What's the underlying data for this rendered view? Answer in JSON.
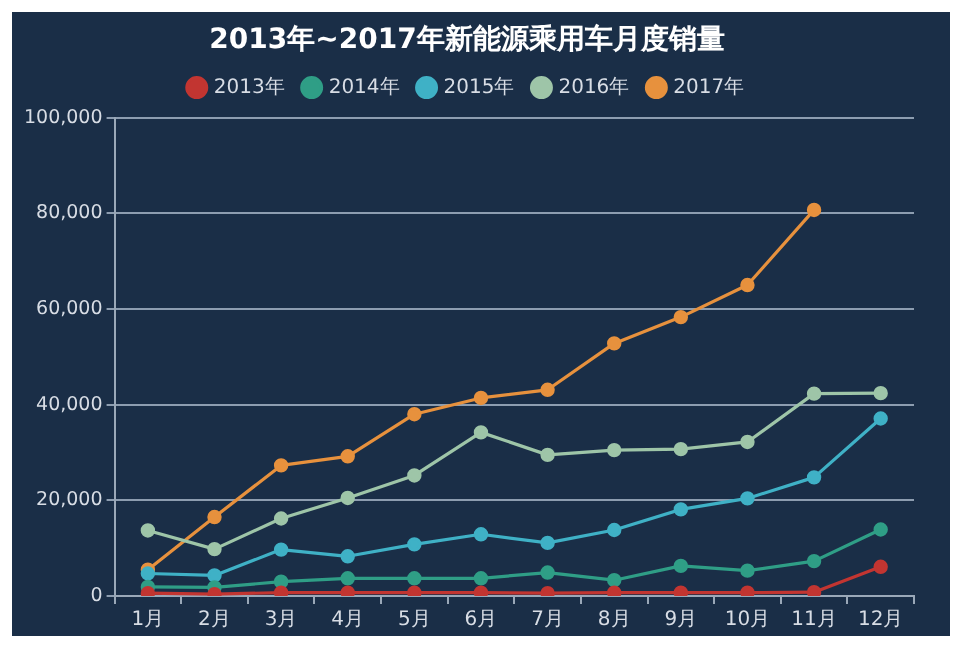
{
  "chart_data": {
    "type": "line",
    "title": "2013年~2017年新能源乘用车月度销量",
    "categories": [
      "1月",
      "2月",
      "3月",
      "4月",
      "5月",
      "6月",
      "7月",
      "8月",
      "9月",
      "10月",
      "11月",
      "12月"
    ],
    "series": [
      {
        "name": "2013年",
        "color": "#c23531",
        "values": [
          600,
          400,
          700,
          700,
          700,
          700,
          600,
          700,
          700,
          700,
          800,
          6100
        ]
      },
      {
        "name": "2014年",
        "color": "#2f9e86",
        "values": [
          1900,
          1800,
          3000,
          3700,
          3700,
          3700,
          4900,
          3300,
          6300,
          5300,
          7300,
          13900
        ]
      },
      {
        "name": "2015年",
        "color": "#3fb1c6",
        "values": [
          4700,
          4300,
          9700,
          8300,
          10800,
          12900,
          11100,
          13800,
          18100,
          20400,
          24800,
          37100
        ]
      },
      {
        "name": "2016年",
        "color": "#9ec5a8",
        "values": [
          13700,
          9800,
          16200,
          20500,
          25200,
          34200,
          29500,
          30500,
          30700,
          32200,
          42300,
          42400
        ]
      },
      {
        "name": "2017年",
        "color": "#e7913d",
        "values": [
          5500,
          16500,
          27300,
          29200,
          38000,
          41400,
          43100,
          52800,
          58300,
          65000,
          80700,
          null
        ]
      }
    ],
    "ylim": [
      0,
      100000
    ],
    "yticks": [
      {
        "value": 0,
        "label": "0"
      },
      {
        "value": 20000,
        "label": "20,000"
      },
      {
        "value": 40000,
        "label": "40,000"
      },
      {
        "value": 60000,
        "label": "60,000"
      },
      {
        "value": 80000,
        "label": "80,000"
      },
      {
        "value": 100000,
        "label": "100,000"
      }
    ],
    "grid": "y",
    "legend": "top",
    "marker": "circle",
    "line_style": "solid"
  }
}
